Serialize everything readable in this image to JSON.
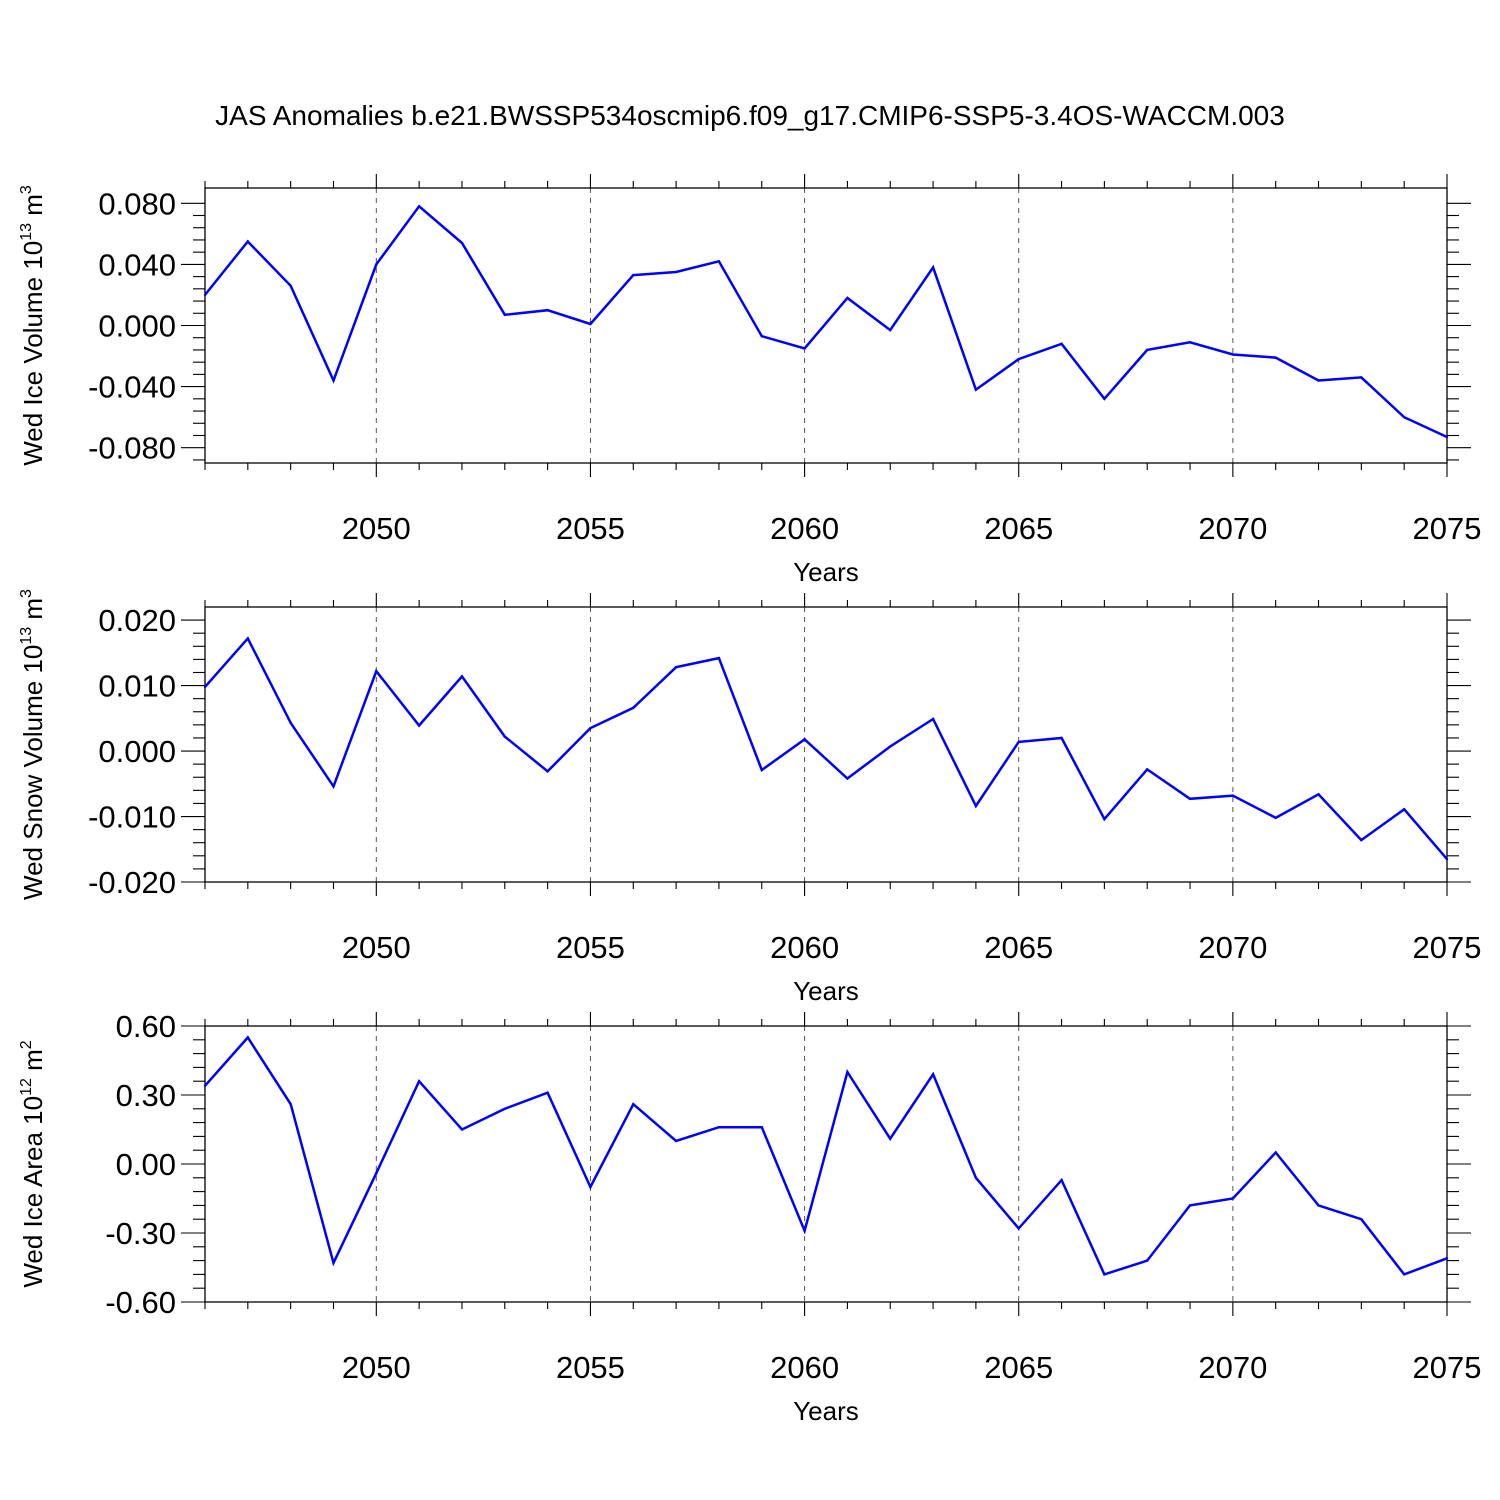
{
  "title": "JAS Anomalies b.e21.BWSSP534oscmip6.f09_g17.CMIP6-SSP5-3.4OS-WACCM.003",
  "colors": {
    "series": "#0000ff",
    "axis": "#000000",
    "grid": "#555555"
  },
  "chart_data": [
    {
      "type": "line",
      "ylabel": "Wed Ice Volume",
      "unit": {
        "base": "10",
        "exp": "13",
        "unit": "m",
        "unit_exp": "3"
      },
      "xlabel": "Years",
      "xlim": [
        2046,
        2075
      ],
      "ylim": [
        -0.09,
        0.09
      ],
      "yticks": [
        -0.08,
        -0.04,
        0.0,
        0.04,
        0.08
      ],
      "ytick_labels": [
        "-0.080",
        "-0.040",
        "0.000",
        "0.040",
        "0.080"
      ],
      "xticks": [
        2050,
        2055,
        2060,
        2065,
        2070,
        2075
      ],
      "xtick_labels": [
        "2050",
        "2055",
        "2060",
        "2065",
        "2070",
        "2075"
      ],
      "grid_x": [
        2050,
        2055,
        2060,
        2065,
        2070
      ],
      "x": [
        2046,
        2047,
        2048,
        2049,
        2050,
        2051,
        2052,
        2053,
        2054,
        2055,
        2056,
        2057,
        2058,
        2059,
        2060,
        2061,
        2062,
        2063,
        2064,
        2065,
        2066,
        2067,
        2068,
        2069,
        2070,
        2071,
        2072,
        2073,
        2074,
        2075
      ],
      "values": [
        0.02,
        0.055,
        0.026,
        -0.036,
        0.04,
        0.078,
        0.054,
        0.007,
        0.01,
        0.001,
        0.033,
        0.035,
        0.042,
        -0.007,
        -0.015,
        0.018,
        -0.003,
        0.038,
        -0.042,
        -0.022,
        -0.012,
        -0.048,
        -0.016,
        -0.011,
        -0.019,
        -0.021,
        -0.036,
        -0.034,
        -0.06,
        -0.073
      ]
    },
    {
      "type": "line",
      "ylabel": "Wed Snow Volume",
      "unit": {
        "base": "10",
        "exp": "13",
        "unit": "m",
        "unit_exp": "3"
      },
      "xlabel": "Years",
      "xlim": [
        2046,
        2075
      ],
      "ylim": [
        -0.02,
        0.022
      ],
      "yticks": [
        -0.02,
        -0.01,
        0.0,
        0.01,
        0.02
      ],
      "ytick_labels": [
        "-0.020",
        "-0.010",
        "0.000",
        "0.010",
        "0.020"
      ],
      "xticks": [
        2050,
        2055,
        2060,
        2065,
        2070,
        2075
      ],
      "xtick_labels": [
        "2050",
        "2055",
        "2060",
        "2065",
        "2070",
        "2075"
      ],
      "grid_x": [
        2050,
        2055,
        2060,
        2065,
        2070
      ],
      "x": [
        2046,
        2047,
        2048,
        2049,
        2050,
        2051,
        2052,
        2053,
        2054,
        2055,
        2056,
        2057,
        2058,
        2059,
        2060,
        2061,
        2062,
        2063,
        2064,
        2065,
        2066,
        2067,
        2068,
        2069,
        2070,
        2071,
        2072,
        2073,
        2074,
        2075
      ],
      "values": [
        0.0098,
        0.0172,
        0.0043,
        -0.0054,
        0.0122,
        0.0039,
        0.0114,
        0.0022,
        -0.0031,
        0.0035,
        0.0066,
        0.0128,
        0.0142,
        -0.0029,
        0.0018,
        -0.0042,
        0.0007,
        0.0049,
        -0.0084,
        0.0014,
        0.002,
        -0.0104,
        -0.0028,
        -0.0073,
        -0.0068,
        -0.0102,
        -0.0066,
        -0.0136,
        -0.0089,
        -0.0165
      ]
    },
    {
      "type": "line",
      "ylabel": "Wed Ice Area",
      "unit": {
        "base": "10",
        "exp": "12",
        "unit": "m",
        "unit_exp": "2"
      },
      "xlabel": "Years",
      "xlim": [
        2046,
        2075
      ],
      "ylim": [
        -0.6,
        0.6
      ],
      "yticks": [
        -0.6,
        -0.3,
        0.0,
        0.3,
        0.6
      ],
      "ytick_labels": [
        "-0.60",
        "-0.30",
        "0.00",
        "0.30",
        "0.60"
      ],
      "xticks": [
        2050,
        2055,
        2060,
        2065,
        2070,
        2075
      ],
      "xtick_labels": [
        "2050",
        "2055",
        "2060",
        "2065",
        "2070",
        "2075"
      ],
      "grid_x": [
        2050,
        2055,
        2060,
        2065,
        2070
      ],
      "x": [
        2046,
        2047,
        2048,
        2049,
        2050,
        2051,
        2052,
        2053,
        2054,
        2055,
        2056,
        2057,
        2058,
        2059,
        2060,
        2061,
        2062,
        2063,
        2064,
        2065,
        2066,
        2067,
        2068,
        2069,
        2070,
        2071,
        2072,
        2073,
        2074,
        2075
      ],
      "values": [
        0.34,
        0.55,
        0.26,
        -0.43,
        -0.04,
        0.36,
        0.15,
        0.24,
        0.31,
        -0.1,
        0.26,
        0.1,
        0.16,
        0.16,
        -0.29,
        0.4,
        0.11,
        0.39,
        -0.06,
        -0.28,
        -0.07,
        -0.48,
        -0.42,
        -0.18,
        -0.15,
        0.05,
        -0.18,
        -0.24,
        -0.48,
        -0.41
      ]
    }
  ]
}
